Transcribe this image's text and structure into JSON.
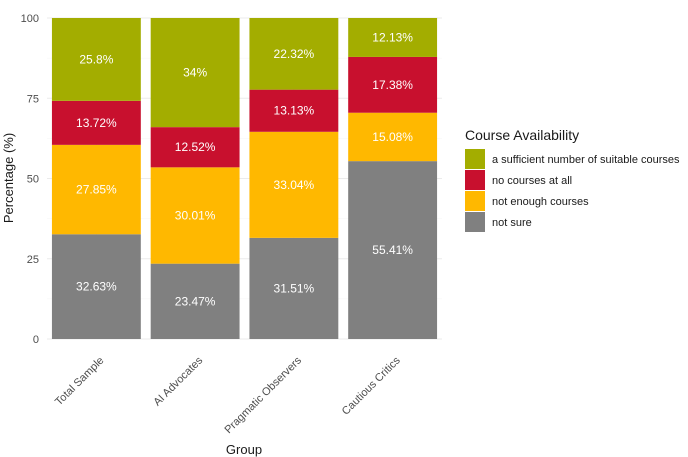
{
  "chart_data": {
    "type": "bar",
    "stacked": true,
    "xlabel": "Group",
    "ylabel": "Percentage (%)",
    "ylim": [
      0,
      100
    ],
    "yticks": [
      0,
      25,
      50,
      75,
      100
    ],
    "grid": true,
    "legend_position": "right",
    "legend_title": "Course Availability",
    "categories": [
      "Total Sample",
      "AI Advocates",
      "Pragmatic Observers",
      "Cautious Critics"
    ],
    "series": [
      {
        "name": "not sure",
        "color": "#808080",
        "values": [
          32.63,
          23.47,
          31.51,
          55.41
        ],
        "labels": [
          "32.63%",
          "23.47%",
          "31.51%",
          "55.41%"
        ]
      },
      {
        "name": "not enough courses",
        "color": "#FFB800",
        "values": [
          27.85,
          30.01,
          33.04,
          15.08
        ],
        "labels": [
          "27.85%",
          "30.01%",
          "33.04%",
          "15.08%"
        ]
      },
      {
        "name": "no courses at all",
        "color": "#C8102E",
        "values": [
          13.72,
          12.52,
          13.13,
          17.38
        ],
        "labels": [
          "13.72%",
          "12.52%",
          "13.13%",
          "17.38%"
        ]
      },
      {
        "name": "a sufficient number of suitable courses",
        "color": "#A3AD00",
        "values": [
          25.8,
          34,
          22.32,
          12.13
        ],
        "labels": [
          "25.8%",
          "34%",
          "22.32%",
          "12.13%"
        ]
      }
    ],
    "legend_order": [
      3,
      2,
      1,
      0
    ]
  }
}
